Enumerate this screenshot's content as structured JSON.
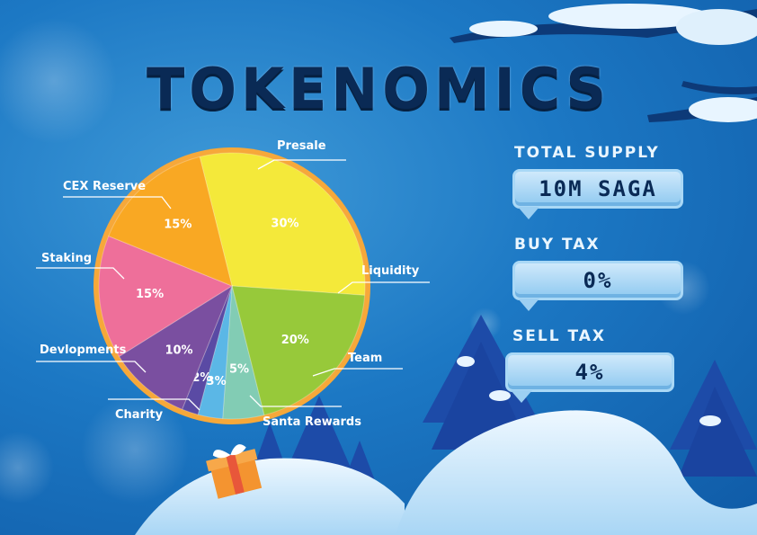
{
  "title": "TOKENOMICS",
  "chart_data": {
    "type": "pie",
    "title": "TOKENOMICS",
    "categories": [
      "Presale",
      "Liquidity",
      "Team",
      "Santa Rewards",
      "Charity",
      "Devlopments",
      "Staking",
      "CEX Reserve"
    ],
    "values": [
      30,
      20,
      5,
      3,
      2,
      10,
      15,
      15
    ],
    "labels": [
      "30%",
      "20%",
      "5%",
      "3%",
      "2%",
      "10%",
      "15%",
      "15%"
    ],
    "colors": [
      "#f4e93a",
      "#97c93a",
      "#82ccb4",
      "#5bb7e6",
      "#5a4aa4",
      "#7a4fa0",
      "#ee6f9a",
      "#f9a823"
    ],
    "border_color": "#f6a83a"
  },
  "info": {
    "total_supply": {
      "label": "TOTAL SUPPLY",
      "value": "10M SAGA"
    },
    "buy_tax": {
      "label": "BUY TAX",
      "value": "0%"
    },
    "sell_tax": {
      "label": "SELL TAX",
      "value": "4%"
    }
  }
}
